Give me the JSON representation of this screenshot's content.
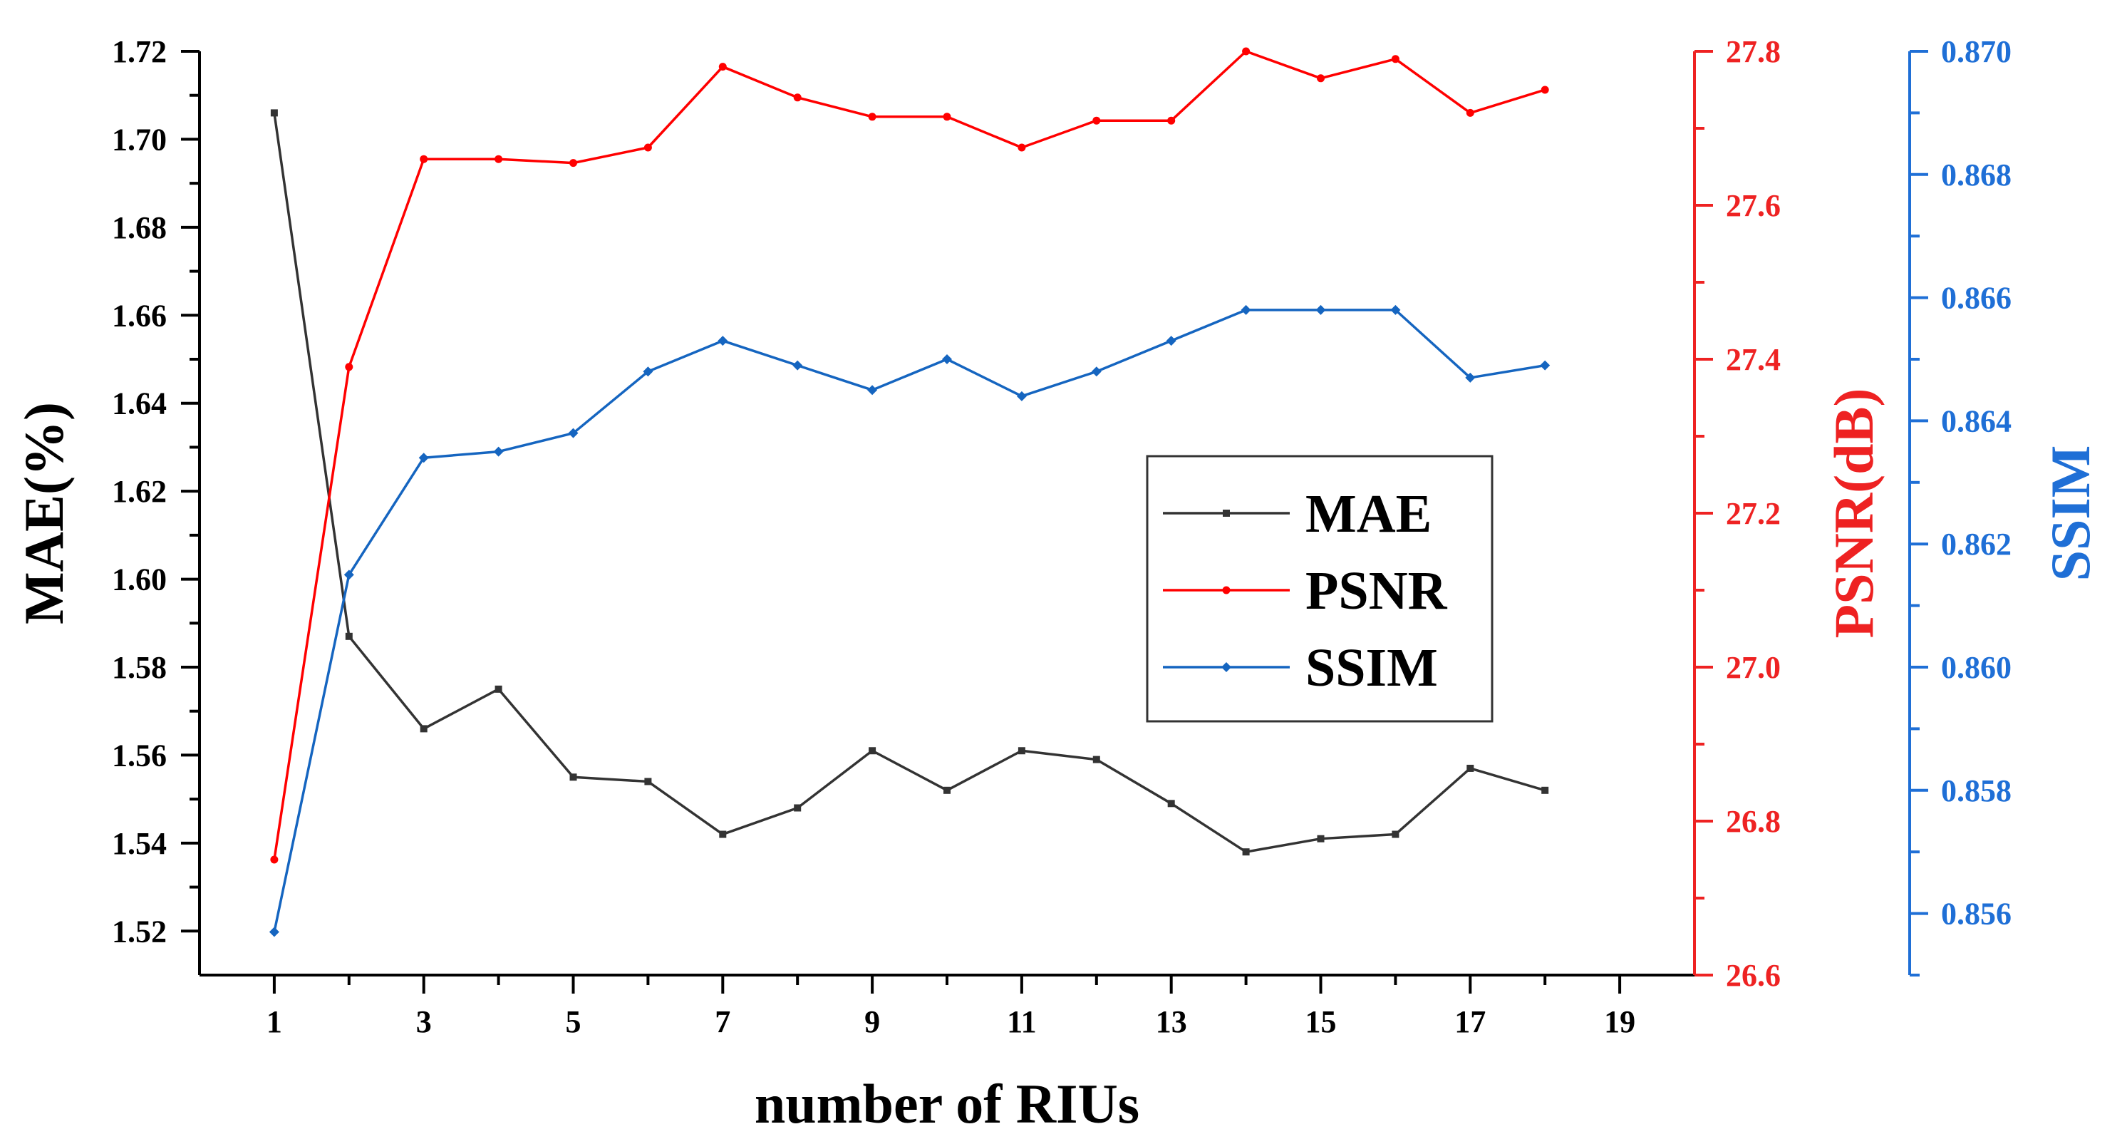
{
  "chart_data": {
    "type": "line",
    "xlabel": "number of RIUs",
    "x": [
      1,
      2,
      3,
      4,
      5,
      6,
      7,
      8,
      9,
      10,
      11,
      12,
      13,
      14,
      15,
      16,
      17,
      18
    ],
    "xlim": [
      0,
      20
    ],
    "xticks": [
      1,
      3,
      5,
      7,
      9,
      11,
      13,
      15,
      17,
      19
    ],
    "series": [
      {
        "name": "MAE",
        "axis": "left",
        "color": "#333333",
        "marker": "square",
        "values": [
          1.706,
          1.587,
          1.566,
          1.575,
          1.555,
          1.554,
          1.542,
          1.548,
          1.561,
          1.552,
          1.561,
          1.559,
          1.549,
          1.538,
          1.541,
          1.542,
          1.557,
          1.552
        ]
      },
      {
        "name": "PSNR",
        "axis": "right1",
        "color": "#ff0000",
        "marker": "circle",
        "values": [
          26.75,
          27.39,
          27.66,
          27.66,
          27.655,
          27.675,
          27.78,
          27.74,
          27.715,
          27.715,
          27.675,
          27.71,
          27.71,
          27.8,
          27.765,
          27.79,
          27.72,
          27.75
        ]
      },
      {
        "name": "SSIM",
        "axis": "right2",
        "color": "#1565c0",
        "marker": "diamond",
        "values": [
          0.8557,
          0.8615,
          0.8634,
          0.8635,
          0.8638,
          0.8648,
          0.8653,
          0.8649,
          0.8645,
          0.865,
          0.8644,
          0.8648,
          0.8653,
          0.8658,
          0.8658,
          0.8658,
          0.8647,
          0.8649
        ]
      }
    ],
    "axes": {
      "left": {
        "label": "MAE(%)",
        "color": "#000000",
        "range": [
          1.51,
          1.72
        ],
        "ticks": [
          "1.52",
          "1.54",
          "1.56",
          "1.58",
          "1.60",
          "1.62",
          "1.64",
          "1.66",
          "1.68",
          "1.70",
          "1.72"
        ]
      },
      "right1": {
        "label": "PSNR(dB)",
        "color": "#ee2222",
        "range": [
          26.6,
          27.8
        ],
        "ticks": [
          "26.6",
          "26.8",
          "27.0",
          "27.2",
          "27.4",
          "27.6",
          "27.8"
        ]
      },
      "right2": {
        "label": "SSIM",
        "color": "#1f6fd6",
        "range": [
          0.855,
          0.87
        ],
        "ticks": [
          "0.856",
          "0.858",
          "0.860",
          "0.862",
          "0.864",
          "0.866",
          "0.868",
          "0.870"
        ]
      }
    },
    "legend": {
      "placement": "center-right",
      "entries": [
        "MAE",
        "PSNR",
        "SSIM"
      ]
    },
    "grid": false
  }
}
